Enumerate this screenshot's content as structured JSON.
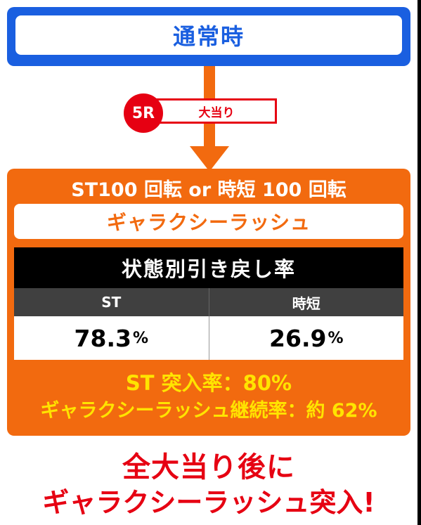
{
  "normal_state": {
    "label": "通常時"
  },
  "jackpot": {
    "round": "5R",
    "label": "大当り"
  },
  "rush": {
    "header": "ST100 回転 or 時短 100 回転",
    "name": "ギャラクシーラッシュ",
    "table": {
      "title": "状態別引き戻し率",
      "columns": [
        "ST",
        "時短"
      ],
      "values": [
        "78.3",
        "26.9"
      ],
      "unit": "%"
    },
    "st_entry_rate": "ST 突入率：80%",
    "continuation_rate": "ギャラクシーラッシュ継続率：約 62%"
  },
  "footer": {
    "line1": "全大当り後に",
    "line2": "ギャラクシーラッシュ突入!"
  },
  "colors": {
    "blue": "#1a5fe0",
    "orange": "#f26a0f",
    "red": "#e60012",
    "yellow": "#ffe400"
  }
}
